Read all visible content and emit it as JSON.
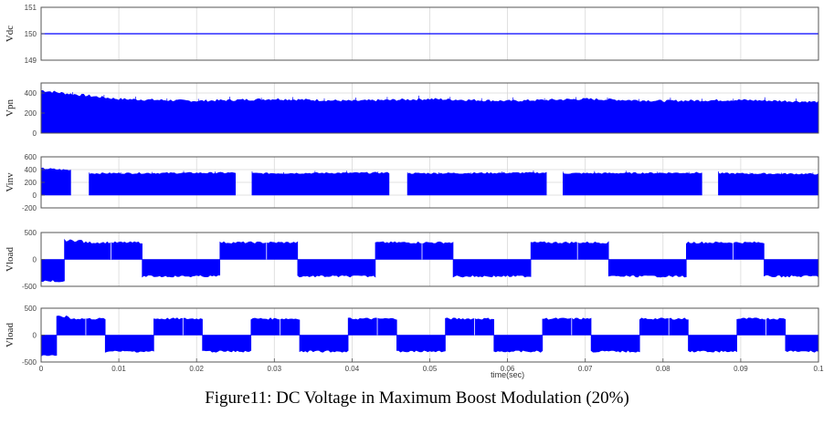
{
  "caption": "Figure11: DC Voltage in Maximum Boost Modulation (20%)",
  "colors": {
    "trace": "#0000ff",
    "axes": "#555555",
    "grid": "#d8d8d8"
  },
  "chart_data": [
    {
      "type": "line",
      "ylabel": "Vdc",
      "ylim": [
        149,
        151
      ],
      "yticks": [
        "151",
        "150",
        "149"
      ],
      "series": [
        {
          "description": "constant DC source",
          "x": [
            0,
            0.1
          ],
          "y": [
            150,
            150
          ]
        }
      ],
      "grid": true
    },
    {
      "type": "area",
      "ylabel": "Vpn",
      "ylim": [
        0,
        500
      ],
      "yticks": [
        "400",
        "200",
        "0"
      ],
      "band": {
        "x": [
          0,
          0.003,
          0.01,
          0.02,
          0.03,
          0.04,
          0.05,
          0.06,
          0.07,
          0.08,
          0.09,
          0.1
        ],
        "low": [
          0,
          0,
          0,
          0,
          0,
          0,
          0,
          0,
          0,
          0,
          0,
          0
        ],
        "high": [
          440,
          410,
          350,
          330,
          350,
          330,
          350,
          330,
          350,
          330,
          340,
          320
        ]
      },
      "grid": true
    },
    {
      "type": "area",
      "ylabel": "Vinv",
      "ylim": [
        -200,
        600
      ],
      "yticks": [
        "600",
        "400",
        "200",
        "0",
        "-200"
      ],
      "band": {
        "x": [
          0,
          0.004,
          0.006,
          0.025,
          0.027,
          0.045,
          0.047,
          0.065,
          0.067,
          0.085,
          0.087,
          0.1
        ],
        "low": [
          0,
          0,
          0,
          0,
          0,
          0,
          0,
          0,
          0,
          0,
          0,
          0
        ],
        "high": [
          430,
          400,
          350,
          360,
          350,
          360,
          350,
          360,
          350,
          360,
          350,
          340
        ]
      },
      "gaps": [
        [
          0.004,
          0.006
        ],
        [
          0.025,
          0.027
        ],
        [
          0.045,
          0.047
        ],
        [
          0.065,
          0.067
        ],
        [
          0.085,
          0.087
        ]
      ],
      "grid": true
    },
    {
      "type": "area",
      "ylabel": "Vload",
      "ylim": [
        -500,
        500
      ],
      "yticks": [
        "500",
        "0",
        "-500"
      ],
      "square_wave": {
        "period": 0.02,
        "phase": 0.003,
        "amplitude": 330,
        "first_negative_peak": -420
      },
      "grid": true
    },
    {
      "type": "area",
      "ylabel": "Vload",
      "ylim": [
        -500,
        500
      ],
      "yticks": [
        "500",
        "0",
        "-500"
      ],
      "square_wave": {
        "period": 0.0125,
        "phase": 0.002,
        "amplitude": 320,
        "first_negative_peak": -400
      },
      "grid": true
    }
  ],
  "x_axis": {
    "xlim": [
      0,
      0.1
    ],
    "ticks": [
      "0",
      "0.01",
      "0.02",
      "0.03",
      "0.04",
      "0.05",
      "0.06",
      "0.07",
      "0.08",
      "0.09",
      "0.1"
    ],
    "label": "time(sec)"
  },
  "panel_labels": [
    "Vdc",
    "Vpn",
    "Vinv",
    "Vload",
    "Vload"
  ]
}
